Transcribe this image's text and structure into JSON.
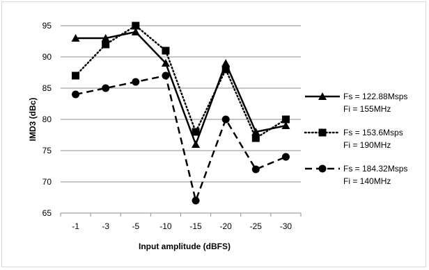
{
  "chart_data": {
    "type": "line",
    "title": "",
    "xlabel": "Input amplitude (dBFS)",
    "ylabel": "IMD3 (dBc)",
    "categories": [
      "-1",
      "-3",
      "-5",
      "-10",
      "-15",
      "-20",
      "-25",
      "-30"
    ],
    "ylim": [
      65,
      95
    ],
    "yticks": [
      65,
      70,
      75,
      80,
      85,
      90,
      95
    ],
    "grid": "horizontal",
    "legend_position": "right",
    "series": [
      {
        "name_line1": "Fs = 122.88Msps",
        "name_line2": "Fi = 155MHz",
        "values": [
          93,
          93,
          94,
          89,
          76,
          89,
          78,
          79
        ],
        "line_style": "solid",
        "marker": "triangle",
        "color": "#000000"
      },
      {
        "name_line1": "Fs = 153.6Msps",
        "name_line2": "Fi = 190MHz",
        "values": [
          87,
          92,
          95,
          91,
          78,
          88,
          77,
          80
        ],
        "line_style": "dotted",
        "marker": "square",
        "color": "#000000"
      },
      {
        "name_line1": "Fs = 184.32Msps",
        "name_line2": "Fi = 140MHz",
        "values": [
          84,
          85,
          86,
          87,
          67,
          80,
          72,
          74
        ],
        "line_style": "dashed",
        "marker": "circle",
        "color": "#000000"
      }
    ]
  }
}
